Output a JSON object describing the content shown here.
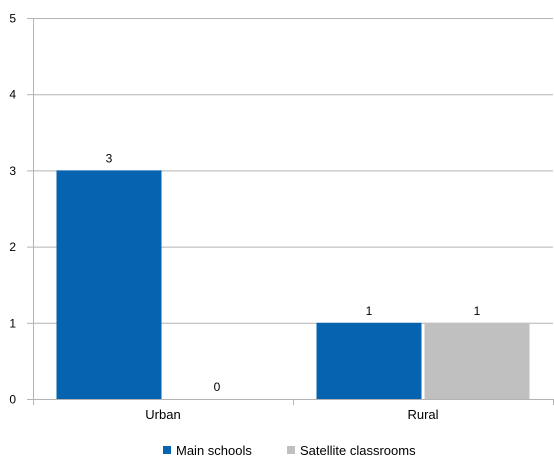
{
  "chart_data": {
    "type": "bar",
    "categories": [
      "Urban",
      "Rural"
    ],
    "series": [
      {
        "name": "Main schools",
        "values": [
          3,
          1
        ],
        "color": "#0563B0"
      },
      {
        "name": "Satellite classrooms",
        "values": [
          0,
          1
        ],
        "color": "#C0C0C0"
      }
    ],
    "title": "",
    "xlabel": "",
    "ylabel": "",
    "ylim": [
      0,
      5
    ],
    "yticks": [
      0,
      1,
      2,
      3,
      4,
      5
    ],
    "grid": true,
    "legend_position": "bottom",
    "data_labels": true
  }
}
